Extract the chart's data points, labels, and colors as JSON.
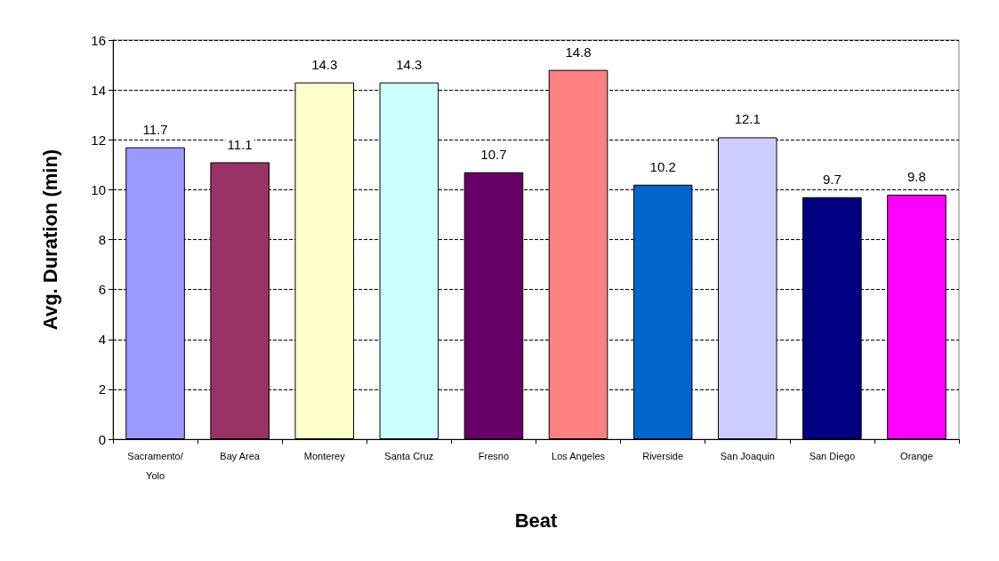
{
  "chart_data": {
    "type": "bar",
    "xlabel": "Beat",
    "ylabel": "Avg. Duration (min)",
    "categories": [
      "Sacramento/\nYolo",
      "Bay Area",
      "Monterey",
      "Santa Cruz",
      "Fresno",
      "Los Angeles",
      "Riverside",
      "San Joaquin",
      "San Diego",
      "Orange"
    ],
    "values": [
      11.7,
      11.1,
      14.3,
      14.3,
      10.7,
      14.8,
      10.2,
      12.1,
      9.7,
      9.8
    ],
    "colors": [
      "#9999ff",
      "#993366",
      "#ffffcc",
      "#ccffff",
      "#660066",
      "#ff8080",
      "#0066cc",
      "#ccccff",
      "#000080",
      "#ff00ff"
    ],
    "ylim": [
      0,
      16
    ],
    "yticks": [
      0,
      2,
      4,
      6,
      8,
      10,
      12,
      14,
      16
    ],
    "grid": "y",
    "data_labels": true
  }
}
